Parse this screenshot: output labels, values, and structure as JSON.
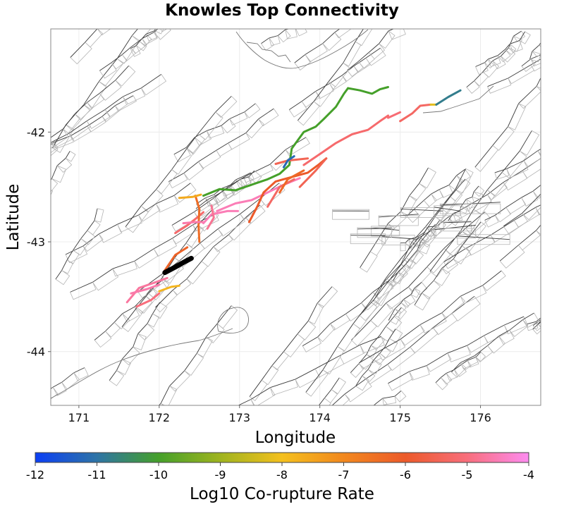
{
  "title": "Knowles Top Connectivity",
  "map": {
    "x_axis_label": "Longitude",
    "y_axis_label": "Latitude",
    "x_range": [
      170.65,
      176.75
    ],
    "y_range": [
      -44.49,
      -41.06
    ],
    "x_ticks": [
      171,
      172,
      173,
      174,
      175,
      176
    ],
    "y_ticks": [
      -42,
      -43,
      -44
    ],
    "grid": true,
    "source_fault_color": "#000000",
    "background_fault_color": "#3a3a3a",
    "coastline_color": "#777777"
  },
  "colorbar": {
    "label": "Log10 Co-rupture Rate",
    "ticks": [
      "-12",
      "-11",
      "-10",
      "-9",
      "-8",
      "-7",
      "-6",
      "-5",
      "-4"
    ],
    "range": [
      -12,
      -4
    ],
    "colormap": [
      "#0b3ff5",
      "#2e74a6",
      "#45a02a",
      "#9fb41f",
      "#f4c01e",
      "#f2881e",
      "#ec5a2a",
      "#f86e7c",
      "#fd8cf0"
    ]
  },
  "chart_data": {
    "type": "map",
    "title": "Knowles Top Connectivity",
    "xlabel": "Longitude",
    "ylabel": "Latitude",
    "xlim": [
      170.65,
      176.75
    ],
    "ylim": [
      -44.49,
      -41.06
    ],
    "source_fault": {
      "name": "Knowles",
      "trace": [
        [
          172.07,
          -43.28
        ],
        [
          172.2,
          -43.23
        ],
        [
          172.32,
          -43.18
        ],
        [
          172.4,
          -43.15
        ]
      ]
    },
    "ruptures": [
      {
        "rate": -4.7,
        "trace": [
          [
            171.6,
            -43.55
          ],
          [
            171.75,
            -43.42
          ],
          [
            171.95,
            -43.37
          ],
          [
            172.1,
            -43.33
          ]
        ]
      },
      {
        "rate": -5.0,
        "trace": [
          [
            171.72,
            -43.59
          ],
          [
            171.9,
            -43.53
          ],
          [
            172.0,
            -43.47
          ]
        ]
      },
      {
        "rate": -4.6,
        "trace": [
          [
            171.65,
            -43.47
          ],
          [
            171.85,
            -43.43
          ],
          [
            172.0,
            -43.39
          ]
        ]
      },
      {
        "rate": -7.8,
        "trace": [
          [
            172.0,
            -43.45
          ],
          [
            172.15,
            -43.41
          ],
          [
            172.25,
            -43.4
          ]
        ]
      },
      {
        "rate": -6.2,
        "trace": [
          [
            172.07,
            -43.26
          ],
          [
            172.2,
            -43.12
          ],
          [
            172.35,
            -43.05
          ]
        ]
      },
      {
        "rate": -5.2,
        "trace": [
          [
            172.2,
            -42.92
          ],
          [
            172.35,
            -42.85
          ],
          [
            172.47,
            -42.78
          ],
          [
            172.55,
            -42.73
          ]
        ]
      },
      {
        "rate": -6.4,
        "trace": [
          [
            172.45,
            -42.58
          ],
          [
            172.5,
            -42.7
          ],
          [
            172.49,
            -42.85
          ],
          [
            172.5,
            -43.0
          ]
        ]
      },
      {
        "rate": -4.6,
        "trace": [
          [
            172.3,
            -42.83
          ],
          [
            172.45,
            -42.82
          ],
          [
            172.55,
            -42.82
          ]
        ]
      },
      {
        "rate": -4.5,
        "trace": [
          [
            172.55,
            -42.83
          ],
          [
            172.65,
            -42.75
          ],
          [
            172.85,
            -42.72
          ],
          [
            172.98,
            -42.72
          ]
        ]
      },
      {
        "rate": -4.8,
        "trace": [
          [
            172.6,
            -42.88
          ],
          [
            172.68,
            -42.78
          ],
          [
            172.65,
            -42.67
          ]
        ]
      },
      {
        "rate": -7.6,
        "trace": [
          [
            172.25,
            -42.6
          ],
          [
            172.42,
            -42.59
          ],
          [
            172.52,
            -42.57
          ]
        ]
      },
      {
        "rate": -10.0,
        "trace": [
          [
            172.55,
            -42.58
          ],
          [
            172.75,
            -42.52
          ],
          [
            172.95,
            -42.53
          ],
          [
            173.15,
            -42.48
          ],
          [
            173.35,
            -42.43
          ],
          [
            173.5,
            -42.38
          ],
          [
            173.62,
            -42.3
          ]
        ]
      },
      {
        "rate": -10.0,
        "trace": [
          [
            173.62,
            -42.3
          ],
          [
            173.65,
            -42.15
          ],
          [
            173.8,
            -42.0
          ],
          [
            173.95,
            -41.95
          ],
          [
            174.05,
            -41.88
          ],
          [
            174.2,
            -41.77
          ],
          [
            174.3,
            -41.65
          ],
          [
            174.35,
            -41.6
          ]
        ]
      },
      {
        "rate": -10.0,
        "trace": [
          [
            174.35,
            -41.6
          ],
          [
            174.5,
            -41.62
          ],
          [
            174.65,
            -41.65
          ],
          [
            174.75,
            -41.61
          ],
          [
            174.85,
            -41.59
          ]
        ]
      },
      {
        "rate": -4.5,
        "trace": [
          [
            172.72,
            -42.72
          ],
          [
            172.95,
            -42.65
          ],
          [
            173.15,
            -42.62
          ],
          [
            173.35,
            -42.55
          ],
          [
            173.55,
            -42.48
          ],
          [
            173.75,
            -42.42
          ]
        ]
      },
      {
        "rate": -6.0,
        "trace": [
          [
            173.12,
            -42.82
          ],
          [
            173.22,
            -42.68
          ],
          [
            173.3,
            -42.55
          ],
          [
            173.45,
            -42.45
          ],
          [
            173.6,
            -42.42
          ],
          [
            173.85,
            -42.37
          ],
          [
            173.98,
            -42.3
          ],
          [
            174.08,
            -42.24
          ]
        ]
      },
      {
        "rate": -5.3,
        "trace": [
          [
            173.35,
            -42.68
          ],
          [
            173.5,
            -42.5
          ],
          [
            173.68,
            -42.43
          ]
        ]
      },
      {
        "rate": -5.5,
        "trace": [
          [
            173.75,
            -42.5
          ],
          [
            173.95,
            -42.35
          ],
          [
            174.08,
            -42.24
          ]
        ]
      },
      {
        "rate": -5.2,
        "trace": [
          [
            173.8,
            -42.3
          ],
          [
            174.0,
            -42.2
          ],
          [
            174.2,
            -42.1
          ],
          [
            174.4,
            -42.02
          ],
          [
            174.6,
            -41.98
          ],
          [
            174.75,
            -41.9
          ],
          [
            174.85,
            -41.85
          ]
        ]
      },
      {
        "rate": -5.5,
        "trace": [
          [
            173.45,
            -42.29
          ],
          [
            173.6,
            -42.26
          ],
          [
            173.85,
            -42.24
          ]
        ]
      },
      {
        "rate": -6.3,
        "trace": [
          [
            173.5,
            -42.55
          ],
          [
            173.6,
            -42.43
          ],
          [
            173.8,
            -42.35
          ]
        ]
      },
      {
        "rate": -11.2,
        "trace": [
          [
            173.55,
            -42.32
          ],
          [
            173.6,
            -42.26
          ],
          [
            173.68,
            -42.22
          ]
        ]
      },
      {
        "rate": -5.3,
        "trace": [
          [
            175.0,
            -41.9
          ],
          [
            175.15,
            -41.83
          ],
          [
            175.25,
            -41.76
          ],
          [
            175.38,
            -41.75
          ]
        ]
      },
      {
        "rate": -8.2,
        "trace": [
          [
            175.38,
            -41.75
          ],
          [
            175.45,
            -41.75
          ]
        ]
      },
      {
        "rate": -10.8,
        "trace": [
          [
            175.45,
            -41.75
          ],
          [
            175.6,
            -41.68
          ],
          [
            175.75,
            -41.62
          ]
        ]
      },
      {
        "rate": -5.1,
        "trace": [
          [
            175.0,
            -41.82
          ],
          [
            174.85,
            -41.87
          ]
        ]
      }
    ]
  }
}
